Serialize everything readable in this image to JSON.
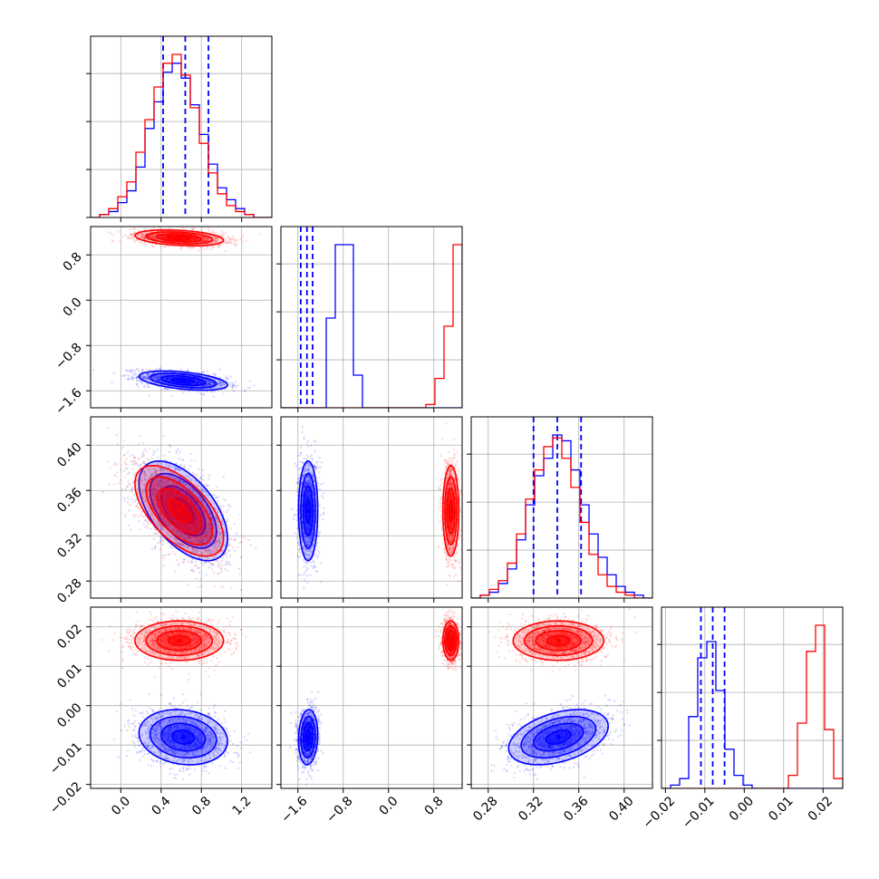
{
  "colors": {
    "series_a": "#0000ff",
    "series_b": "#ff0000",
    "grid": "#b0b0b0",
    "axes": "#000000"
  },
  "chart_data": {
    "type": "corner",
    "description_free": true,
    "parameters": [
      {
        "id": "p0",
        "range": [
          -0.3,
          1.5
        ],
        "ticks": [
          0.0,
          0.4,
          0.8,
          1.2
        ],
        "tick_labels": [
          "0.0",
          "0.4",
          "0.8",
          "1.2"
        ]
      },
      {
        "id": "p1",
        "range": [
          -1.9,
          1.3
        ],
        "ticks": [
          -1.6,
          -0.8,
          0.0,
          0.8
        ],
        "tick_labels": [
          "−1.6",
          "−0.8",
          "0.0",
          "0.8"
        ]
      },
      {
        "id": "p2",
        "range": [
          0.265,
          0.425
        ],
        "ticks": [
          0.28,
          0.32,
          0.36,
          0.4
        ],
        "tick_labels": [
          "0.28",
          "0.32",
          "0.36",
          "0.40"
        ]
      },
      {
        "id": "p3",
        "range": [
          -0.021,
          0.025
        ],
        "ticks": [
          -0.02,
          -0.01,
          0.0,
          0.01,
          0.02
        ],
        "tick_labels": [
          "−0.02",
          "−0.01",
          "0.00",
          "0.01",
          "0.02"
        ]
      }
    ],
    "grid": true,
    "series": [
      {
        "color_key": "series_a",
        "means": [
          0.62,
          -1.42,
          0.342,
          -0.008
        ],
        "sigmas": [
          0.22,
          0.085,
          0.022,
          0.0035
        ],
        "correlations": {
          "0-1": -0.45,
          "0-2": -0.55,
          "0-3": -0.15,
          "1-2": 0.0,
          "1-3": 0.1,
          "2-3": 0.4
        },
        "quantile_lines": [
          [
            0.42,
            0.64,
            0.87
          ],
          [
            -1.55,
            -1.44,
            -1.34
          ],
          [
            0.32,
            0.341,
            0.362
          ],
          [
            -0.011,
            -0.008,
            -0.005
          ]
        ],
        "histograms": [
          [
            0,
            1,
            2,
            5,
            9,
            17,
            30,
            39,
            49,
            52,
            47,
            38,
            28,
            18,
            10,
            6,
            3,
            1,
            0,
            0
          ],
          [
            0,
            0,
            0,
            0,
            0,
            55,
            100,
            100,
            20,
            0,
            0,
            0,
            0,
            0,
            0,
            0,
            0,
            0,
            0,
            0
          ],
          [
            0,
            1,
            2,
            5,
            10,
            20,
            32,
            42,
            48,
            56,
            54,
            44,
            32,
            22,
            14,
            8,
            4,
            2,
            1,
            0
          ],
          [
            0,
            1,
            3,
            22,
            40,
            45,
            30,
            12,
            4,
            1,
            0,
            0,
            0,
            0,
            0,
            0,
            0,
            0,
            0,
            0
          ]
        ]
      },
      {
        "color_key": "series_b",
        "means": [
          0.58,
          1.1,
          0.342,
          0.0165
        ],
        "sigmas": [
          0.22,
          0.07,
          0.02,
          0.0025
        ],
        "correlations": {
          "0-1": -0.3,
          "0-2": -0.6,
          "0-3": 0.0,
          "1-2": 0.0,
          "1-3": 0.0,
          "2-3": 0.0
        },
        "histograms": [
          [
            0,
            1,
            3,
            7,
            12,
            22,
            33,
            44,
            52,
            55,
            48,
            37,
            25,
            15,
            8,
            4,
            2,
            1,
            0,
            0
          ],
          [
            0,
            0,
            0,
            0,
            0,
            0,
            0,
            0,
            0,
            0,
            0,
            0,
            0,
            0,
            0,
            0,
            2,
            18,
            50,
            100
          ],
          [
            0,
            1,
            3,
            6,
            12,
            22,
            34,
            44,
            52,
            55,
            48,
            38,
            26,
            15,
            8,
            4,
            2,
            1,
            0,
            0
          ],
          [
            0,
            0,
            0,
            0,
            0,
            0,
            0,
            0,
            0,
            0,
            0,
            0,
            0,
            0,
            4,
            20,
            42,
            50,
            18,
            3
          ]
        ]
      }
    ]
  }
}
